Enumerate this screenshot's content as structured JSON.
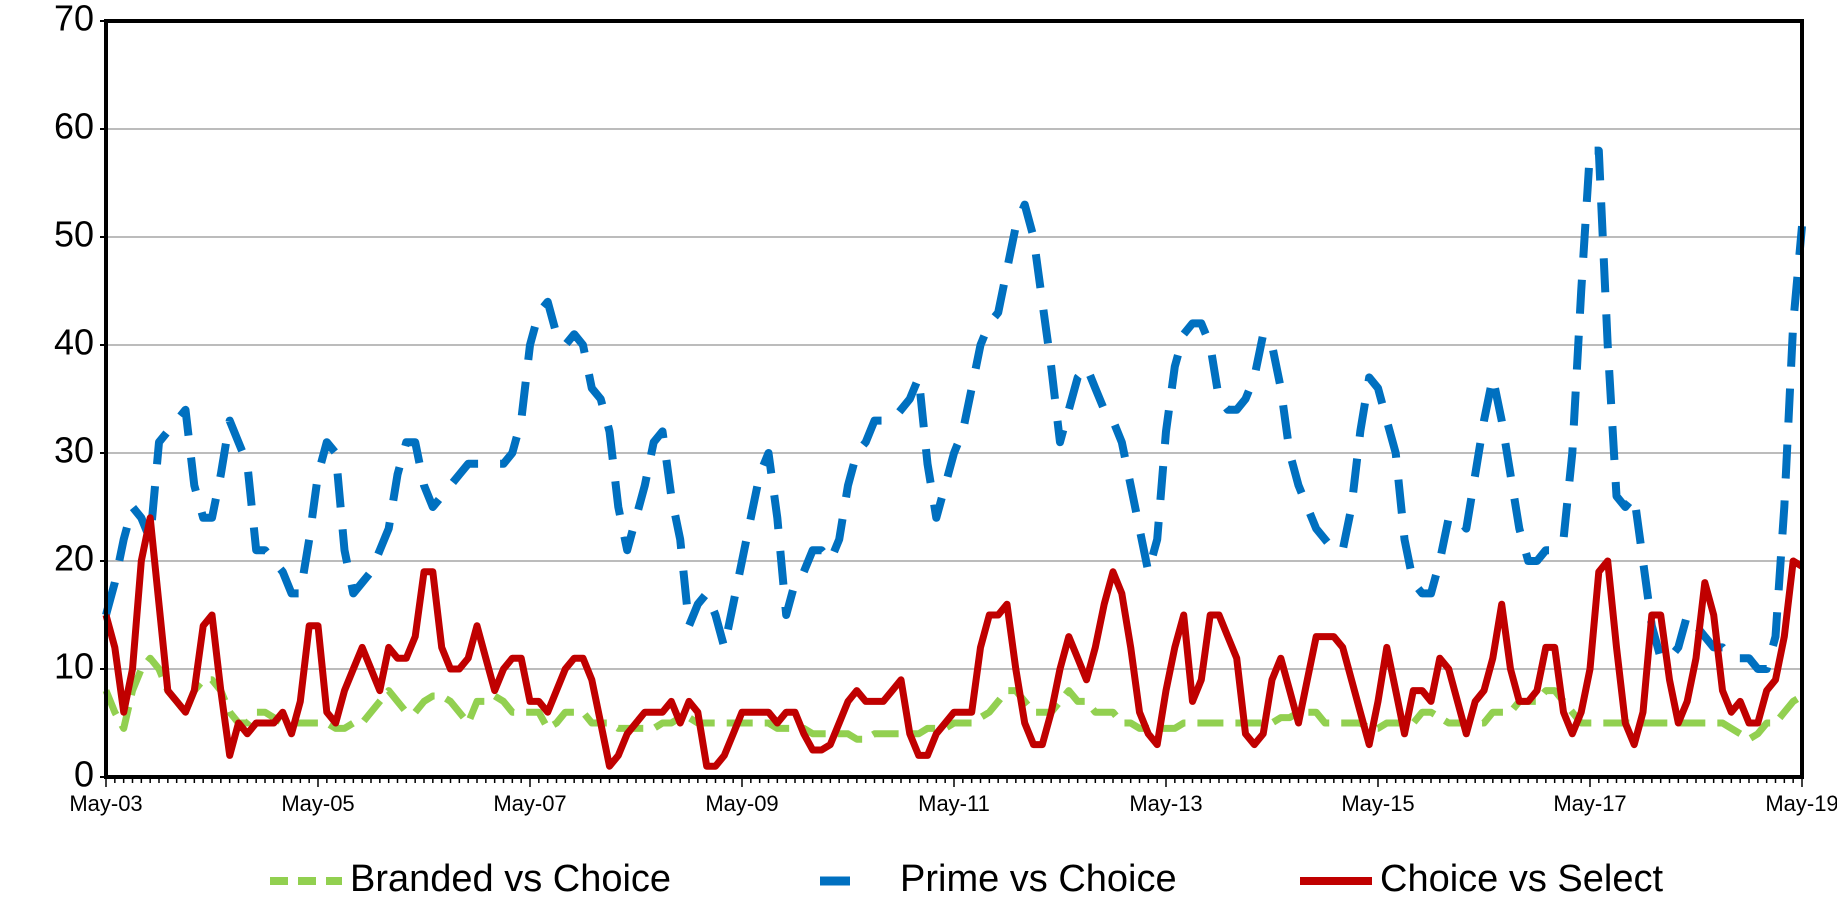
{
  "chart_data": {
    "type": "line",
    "categories": [
      "May-03",
      null,
      null,
      null,
      null,
      null,
      null,
      null,
      null,
      null,
      null,
      null,
      null,
      null,
      null,
      null,
      null,
      null,
      null,
      null,
      null,
      null,
      null,
      null,
      "May-05",
      null,
      null,
      null,
      null,
      null,
      null,
      null,
      null,
      null,
      null,
      null,
      null,
      null,
      null,
      null,
      null,
      null,
      null,
      null,
      null,
      null,
      null,
      null,
      "May-07",
      null,
      null,
      null,
      null,
      null,
      null,
      null,
      null,
      null,
      null,
      null,
      null,
      null,
      null,
      null,
      null,
      null,
      null,
      null,
      null,
      null,
      null,
      null,
      "May-09",
      null,
      null,
      null,
      null,
      null,
      null,
      null,
      null,
      null,
      null,
      null,
      null,
      null,
      null,
      null,
      null,
      null,
      null,
      null,
      null,
      null,
      null,
      null,
      "May-11",
      null,
      null,
      null,
      null,
      null,
      null,
      null,
      null,
      null,
      null,
      null,
      null,
      null,
      null,
      null,
      null,
      null,
      null,
      null,
      null,
      null,
      null,
      null,
      "May-13",
      null,
      null,
      null,
      null,
      null,
      null,
      null,
      null,
      null,
      null,
      null,
      null,
      null,
      null,
      null,
      null,
      null,
      null,
      null,
      null,
      null,
      null,
      null,
      "May-15",
      null,
      null,
      null,
      null,
      null,
      null,
      null,
      null,
      null,
      null,
      null,
      null,
      null,
      null,
      null,
      null,
      null,
      null,
      null,
      null,
      null,
      null,
      null,
      "May-17",
      null,
      null,
      null,
      null,
      null,
      null,
      null,
      null,
      null,
      null,
      null,
      null,
      null,
      null,
      null,
      null,
      null,
      null,
      null,
      null,
      null,
      null,
      null,
      "May-19"
    ],
    "series": [
      {
        "name": "Branded vs Choice",
        "color": "#92d050",
        "line_style": "short-dash",
        "values": [
          8,
          6,
          4.5,
          8,
          10,
          11,
          10,
          8,
          7,
          6,
          8,
          9,
          9,
          8,
          6,
          5,
          5,
          6,
          6,
          5.5,
          5,
          5,
          5,
          5,
          5,
          5,
          4.5,
          4.5,
          5,
          5,
          6,
          7,
          8,
          7,
          6,
          6,
          7,
          7.5,
          7.5,
          7,
          6,
          5,
          7,
          7,
          7.5,
          7,
          6,
          6,
          6,
          6,
          4.5,
          5,
          6,
          6,
          6,
          5,
          5,
          5,
          4.5,
          4.5,
          4.5,
          4.5,
          4.5,
          5,
          5,
          5.5,
          5.5,
          5,
          5,
          5,
          5,
          5,
          5,
          5,
          5,
          5,
          4.5,
          4.5,
          4.5,
          4.5,
          4,
          4,
          4,
          4,
          4,
          3.5,
          3.5,
          4,
          4,
          4,
          4,
          4,
          4,
          4.5,
          4.5,
          4.5,
          5,
          5,
          5,
          5.5,
          6,
          7,
          8,
          8,
          7,
          6,
          6,
          6,
          7,
          8,
          7,
          7,
          6,
          6,
          6,
          5,
          5,
          4.5,
          4.5,
          4.5,
          4.5,
          4.5,
          5,
          5,
          5,
          5,
          5,
          5,
          5,
          5,
          5,
          5,
          5,
          5.5,
          5.5,
          6,
          6,
          6,
          5,
          5,
          5,
          5,
          5,
          4.5,
          4.5,
          5,
          5,
          5,
          5,
          6,
          6,
          5.5,
          5,
          5,
          5,
          5,
          5,
          6,
          6,
          6,
          7,
          7,
          7,
          8,
          8,
          7,
          6,
          5,
          5,
          5,
          5,
          5,
          5,
          5,
          5,
          5,
          5,
          5,
          5,
          5,
          5,
          5,
          5,
          5,
          4.5,
          4,
          3.5,
          4,
          5,
          5,
          6,
          7,
          7.5
        ]
      },
      {
        "name": "Prime vs Choice",
        "color": "#0070c0",
        "line_style": "long-dash",
        "values": [
          15,
          18,
          22,
          25,
          24,
          22,
          31,
          32,
          33,
          34,
          27,
          24,
          24,
          28,
          33,
          31,
          29,
          21,
          21,
          20,
          19,
          17,
          17,
          22,
          28,
          31,
          30,
          21,
          17,
          18,
          19,
          21,
          23,
          28,
          31,
          31,
          27,
          25,
          26,
          27,
          28,
          29,
          29,
          29,
          29,
          29,
          30,
          33,
          40,
          43,
          44,
          41,
          40,
          41,
          40,
          36,
          35,
          32,
          25,
          21,
          24,
          27,
          31,
          32,
          26,
          22,
          14,
          16,
          17,
          15,
          12,
          16,
          20,
          24,
          28,
          30,
          24,
          15,
          18,
          19,
          21,
          21,
          20,
          22,
          27,
          30,
          31,
          33,
          33,
          33,
          34,
          35,
          37,
          29,
          24,
          27,
          30,
          32,
          36,
          40,
          42,
          43,
          47,
          51,
          53,
          50,
          44,
          38,
          31,
          34,
          37,
          38,
          36,
          34,
          33,
          31,
          27,
          23,
          19,
          22,
          32,
          38,
          41,
          42,
          42,
          40,
          35,
          34,
          34,
          35,
          37,
          41,
          40,
          36,
          30,
          27,
          25,
          23,
          22,
          21,
          21,
          25,
          32,
          37,
          36,
          33,
          30,
          22,
          18,
          17,
          17,
          20,
          24,
          24,
          23,
          28,
          33,
          37,
          33,
          28,
          23,
          20,
          20,
          21,
          21,
          22,
          30,
          45,
          58,
          58,
          40,
          26,
          25,
          26,
          20,
          14,
          11,
          11,
          12,
          15,
          14,
          13,
          12,
          12,
          11,
          11,
          11,
          10,
          10,
          13,
          25,
          42,
          51
        ]
      },
      {
        "name": "Choice vs Select",
        "color": "#c00000",
        "line_style": "solid",
        "values": [
          15,
          12,
          6,
          10,
          20,
          24,
          16,
          8,
          7,
          6,
          8,
          14,
          15,
          8,
          2,
          5,
          4,
          5,
          5,
          5,
          6,
          4,
          7,
          14,
          14,
          6,
          5,
          8,
          10,
          12,
          10,
          8,
          12,
          11,
          11,
          13,
          19,
          19,
          12,
          10,
          10,
          11,
          14,
          11,
          8,
          10,
          11,
          11,
          7,
          7,
          6,
          8,
          10,
          11,
          11,
          9,
          5,
          1,
          2,
          4,
          5,
          6,
          6,
          6,
          7,
          5,
          7,
          6,
          1,
          1,
          2,
          4,
          6,
          6,
          6,
          6,
          5,
          6,
          6,
          4,
          2.5,
          2.5,
          3,
          5,
          7,
          8,
          7,
          7,
          7,
          8,
          9,
          4,
          2,
          2,
          4,
          5,
          6,
          6,
          6,
          12,
          15,
          15,
          16,
          10,
          5,
          3,
          3,
          6,
          10,
          13,
          11,
          9,
          12,
          16,
          19,
          17,
          12,
          6,
          4,
          3,
          8,
          12,
          15,
          7,
          9,
          15,
          15,
          13,
          11,
          4,
          3,
          4,
          9,
          11,
          8,
          5,
          9,
          13,
          13,
          13,
          12,
          9,
          6,
          3,
          7,
          12,
          8,
          4,
          8,
          8,
          7,
          11,
          10,
          7,
          4,
          7,
          8,
          11,
          16,
          10,
          7,
          7,
          8,
          12,
          12,
          6,
          4,
          6,
          10,
          19,
          20,
          12,
          5,
          3,
          6,
          15,
          15,
          9,
          5,
          7,
          11,
          18,
          15,
          8,
          6,
          7,
          5,
          5,
          8,
          9,
          13,
          20,
          19.5
        ]
      }
    ],
    "ylim": [
      0,
      70
    ],
    "yticks": [
      0,
      10,
      20,
      30,
      40,
      50,
      60,
      70
    ],
    "grid": true,
    "legend": "bottom"
  }
}
